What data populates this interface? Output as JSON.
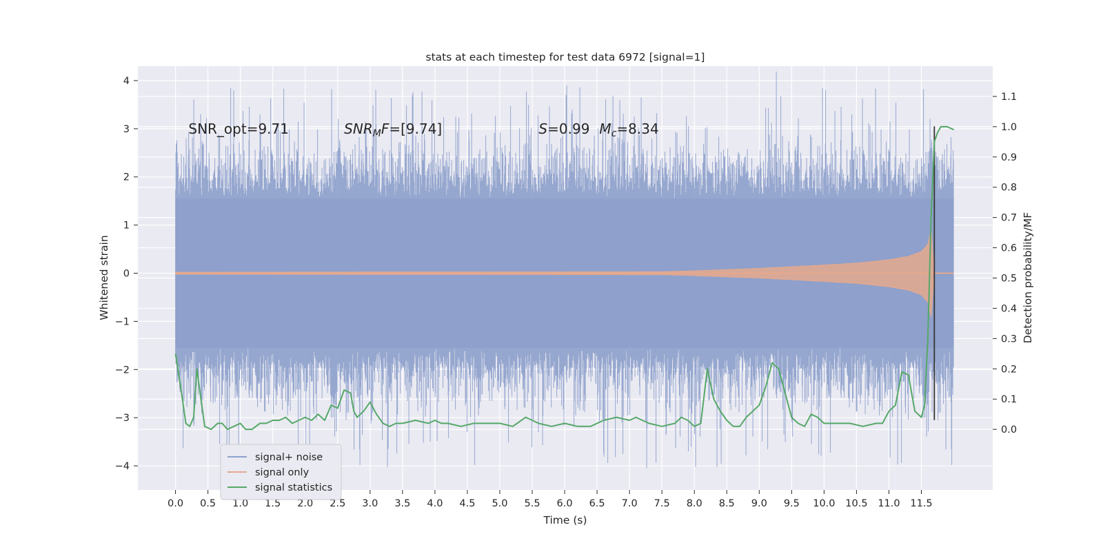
{
  "chart_data": {
    "type": "line",
    "title": "stats at each timestep for test data 6972 [signal=1]",
    "xlabel": "Time (s)",
    "ylabel_left": "Whitened strain",
    "ylabel_right": "Detection probability/MF",
    "xlim": [
      -0.58,
      12.6
    ],
    "ylim_left": [
      -4.5,
      4.3
    ],
    "ylim_right": [
      -0.2,
      1.2
    ],
    "xticks": [
      0.0,
      0.5,
      1.0,
      1.5,
      2.0,
      2.5,
      3.0,
      3.5,
      4.0,
      4.5,
      5.0,
      5.5,
      6.0,
      6.5,
      7.0,
      7.5,
      8.0,
      8.5,
      9.0,
      9.5,
      10.0,
      10.5,
      11.0,
      11.5
    ],
    "xtick_labels": [
      "0.0",
      "0.5",
      "1.0",
      "1.5",
      "2.0",
      "2.5",
      "3.0",
      "3.5",
      "4.0",
      "4.5",
      "5.0",
      "5.5",
      "6.0",
      "6.5",
      "7.0",
      "7.5",
      "8.0",
      "8.5",
      "9.0",
      "9.5",
      "10.0",
      "10.5",
      "11.0",
      "11.5"
    ],
    "yticks_left": [
      4,
      3,
      2,
      1,
      0,
      -1,
      -2,
      -3,
      -4
    ],
    "ytick_labels_left": [
      "4",
      "3",
      "2",
      "1",
      "0",
      "−1",
      "−2",
      "−3",
      "−4"
    ],
    "yticks_right": [
      1.1,
      1.0,
      0.9,
      0.8,
      0.7,
      0.6,
      0.5,
      0.4,
      0.3,
      0.2,
      0.1,
      0.0
    ],
    "ytick_labels_right": [
      "1.1",
      "1.0",
      "0.9",
      "0.8",
      "0.7",
      "0.6",
      "0.5",
      "0.4",
      "0.3",
      "0.2",
      "0.1",
      "0.0"
    ],
    "grid": true,
    "legend_position": "lower-left",
    "series": [
      {
        "name": "signal+ noise",
        "axis": "left",
        "color": "#8da0cb",
        "style": "dense-noise",
        "x_range": [
          0.0,
          12.0
        ],
        "envelope_upper": 2.4,
        "envelope_lower": -2.4,
        "max": 3.9,
        "min": -4.05
      },
      {
        "name": "signal only",
        "axis": "left",
        "color": "#e5a98e",
        "style": "chirp",
        "x_range": [
          0.0,
          12.0
        ],
        "envelope_x": [
          0.0,
          7.5,
          8.0,
          9.0,
          10.0,
          10.5,
          11.0,
          11.3,
          11.5,
          11.6,
          11.65,
          11.7,
          12.0
        ],
        "envelope_amp": [
          0.02,
          0.03,
          0.05,
          0.1,
          0.17,
          0.21,
          0.28,
          0.35,
          0.45,
          0.6,
          0.9,
          0.0,
          0.0
        ]
      },
      {
        "name": "signal statistics",
        "axis": "right",
        "color": "#55a868",
        "x": [
          0.0,
          0.08,
          0.16,
          0.22,
          0.28,
          0.33,
          0.38,
          0.45,
          0.55,
          0.65,
          0.72,
          0.8,
          0.9,
          1.0,
          1.08,
          1.18,
          1.3,
          1.4,
          1.5,
          1.6,
          1.7,
          1.8,
          1.9,
          2.0,
          2.1,
          2.2,
          2.3,
          2.4,
          2.5,
          2.6,
          2.7,
          2.75,
          2.8,
          2.9,
          3.0,
          3.1,
          3.2,
          3.3,
          3.4,
          3.5,
          3.7,
          3.9,
          4.0,
          4.1,
          4.2,
          4.4,
          4.6,
          4.8,
          5.0,
          5.2,
          5.4,
          5.5,
          5.6,
          5.8,
          6.0,
          6.2,
          6.4,
          6.6,
          6.8,
          7.0,
          7.1,
          7.3,
          7.5,
          7.7,
          7.8,
          7.9,
          8.0,
          8.1,
          8.2,
          8.3,
          8.4,
          8.5,
          8.6,
          8.7,
          8.8,
          9.0,
          9.1,
          9.2,
          9.3,
          9.4,
          9.5,
          9.6,
          9.7,
          9.8,
          9.9,
          10.0,
          10.2,
          10.4,
          10.6,
          10.8,
          10.9,
          11.0,
          11.1,
          11.2,
          11.3,
          11.4,
          11.5,
          11.55,
          11.6,
          11.65,
          11.7,
          11.75,
          11.8,
          11.9,
          12.0
        ],
        "y": [
          0.25,
          0.14,
          0.02,
          0.01,
          0.04,
          0.2,
          0.12,
          0.01,
          0.0,
          0.02,
          0.02,
          0.0,
          0.01,
          0.02,
          0.0,
          0.0,
          0.02,
          0.02,
          0.03,
          0.03,
          0.04,
          0.02,
          0.03,
          0.04,
          0.03,
          0.05,
          0.03,
          0.08,
          0.07,
          0.13,
          0.12,
          0.06,
          0.04,
          0.06,
          0.09,
          0.05,
          0.02,
          0.01,
          0.02,
          0.02,
          0.03,
          0.02,
          0.03,
          0.02,
          0.02,
          0.01,
          0.02,
          0.02,
          0.02,
          0.01,
          0.04,
          0.03,
          0.02,
          0.01,
          0.02,
          0.01,
          0.01,
          0.03,
          0.04,
          0.03,
          0.04,
          0.02,
          0.01,
          0.02,
          0.04,
          0.03,
          0.01,
          0.02,
          0.2,
          0.1,
          0.06,
          0.03,
          0.01,
          0.01,
          0.04,
          0.08,
          0.14,
          0.22,
          0.2,
          0.12,
          0.04,
          0.02,
          0.01,
          0.05,
          0.04,
          0.02,
          0.02,
          0.02,
          0.01,
          0.02,
          0.02,
          0.06,
          0.08,
          0.19,
          0.18,
          0.06,
          0.04,
          0.08,
          0.3,
          0.7,
          0.95,
          0.98,
          1.0,
          1.0,
          0.99
        ]
      }
    ],
    "vertical_lines": [
      {
        "x": 11.7,
        "axis": "left",
        "from": -3.05,
        "to": 3.05,
        "color": "#333333"
      }
    ],
    "annotations": [
      {
        "id": "snr_opt",
        "text": "SNR_opt=9.71",
        "x": 0.2,
        "y": 3.0
      },
      {
        "id": "snr_mf",
        "text": "SNR_MF=[9.74]",
        "x": 2.6,
        "y": 3.0
      },
      {
        "id": "s_mc",
        "text": "S=0.99   M_c=8.34",
        "x": 5.6,
        "y": 3.0
      }
    ]
  }
}
